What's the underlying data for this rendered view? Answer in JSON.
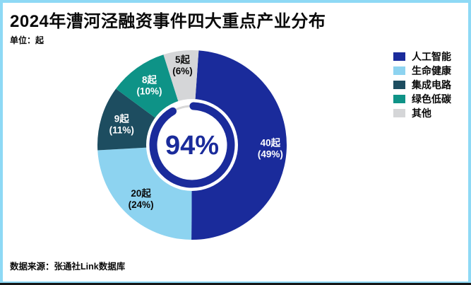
{
  "header": {
    "title": "2024年漕河泾融资事件四大重点产业分布",
    "unit_label": "单位：起"
  },
  "footer": {
    "source": "数据来源：张通社Link数据库"
  },
  "frame": {
    "border_color": "#8ED9F5",
    "bottom_edge_color": "#161616"
  },
  "chart_data": {
    "type": "pie",
    "subtype": "donut",
    "title": "2024年漕河泾融资事件四大重点产业分布",
    "unit": "起",
    "start_angle_deg": 4,
    "direction": "clockwise",
    "center_text": "94%",
    "center_text_color": "#1A2B9B",
    "ring_color": "#1A2B9B",
    "ring_track_color": "#D8D8D8",
    "legend_position": "right",
    "slices": [
      {
        "label": "人工智能",
        "count": 40,
        "count_label": "40起",
        "percent": 49,
        "percent_label": "(49%)",
        "color": "#1A2B9B",
        "text_color": "#FFFFFF"
      },
      {
        "label": "生命健康",
        "count": 20,
        "count_label": "20起",
        "percent": 24,
        "percent_label": "(24%)",
        "color": "#8DD3F0",
        "text_color": "#0A0A0A"
      },
      {
        "label": "集成电路",
        "count": 9,
        "count_label": "9起",
        "percent": 11,
        "percent_label": "(11%)",
        "color": "#1D4D60",
        "text_color": "#FFFFFF"
      },
      {
        "label": "绿色低碳",
        "count": 8,
        "count_label": "8起",
        "percent": 10,
        "percent_label": "(10%)",
        "color": "#0E9387",
        "text_color": "#FFFFFF"
      },
      {
        "label": "其他",
        "count": 5,
        "count_label": "5起",
        "percent": 6,
        "percent_label": "(6%)",
        "color": "#D5D6D8",
        "text_color": "#0A0A0A"
      }
    ]
  }
}
